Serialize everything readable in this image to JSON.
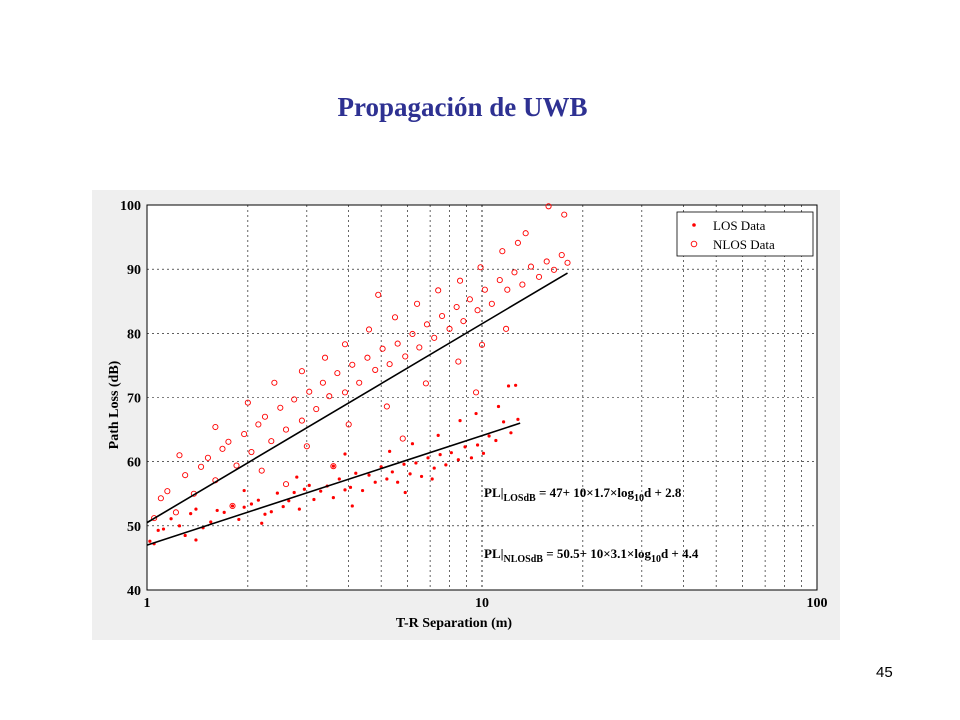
{
  "slide": {
    "title": "Propagación de UWB",
    "page_number": "45"
  },
  "chart_data": {
    "type": "scatter",
    "title": "",
    "xlabel": "T-R Separation (m)",
    "ylabel": "Path Loss (dB)",
    "x_scale": "log",
    "xlim": [
      1,
      100
    ],
    "ylim": [
      40,
      100
    ],
    "x_ticks": [
      "1",
      "10",
      "100"
    ],
    "y_ticks": [
      "40",
      "50",
      "60",
      "70",
      "80",
      "90",
      "100"
    ],
    "grid": "dashed, major and minor",
    "legend_position": "top-right",
    "series": [
      {
        "name": "LOS Data",
        "marker": "dot",
        "color": "#ff0000",
        "points": [
          [
            1.02,
            47.6
          ],
          [
            1.05,
            47.2
          ],
          [
            1.08,
            49.3
          ],
          [
            1.12,
            49.5
          ],
          [
            1.18,
            51.1
          ],
          [
            1.25,
            50.0
          ],
          [
            1.3,
            48.5
          ],
          [
            1.35,
            51.9
          ],
          [
            1.4,
            52.6
          ],
          [
            1.47,
            49.7
          ],
          [
            1.55,
            50.6
          ],
          [
            1.62,
            52.4
          ],
          [
            1.7,
            52.1
          ],
          [
            1.8,
            53.1
          ],
          [
            1.88,
            51.0
          ],
          [
            1.95,
            52.9
          ],
          [
            2.05,
            53.4
          ],
          [
            2.15,
            54.0
          ],
          [
            2.25,
            51.8
          ],
          [
            2.35,
            52.2
          ],
          [
            2.45,
            55.1
          ],
          [
            2.55,
            53.0
          ],
          [
            2.65,
            53.9
          ],
          [
            2.75,
            55.2
          ],
          [
            2.85,
            52.6
          ],
          [
            2.95,
            55.7
          ],
          [
            3.05,
            56.3
          ],
          [
            3.15,
            54.1
          ],
          [
            3.3,
            55.4
          ],
          [
            3.45,
            56.2
          ],
          [
            3.6,
            54.4
          ],
          [
            3.75,
            57.3
          ],
          [
            3.9,
            55.6
          ],
          [
            4.05,
            56.0
          ],
          [
            4.2,
            58.2
          ],
          [
            4.4,
            55.5
          ],
          [
            4.6,
            57.9
          ],
          [
            4.8,
            56.8
          ],
          [
            5.0,
            59.2
          ],
          [
            5.2,
            57.3
          ],
          [
            5.4,
            58.4
          ],
          [
            5.6,
            56.8
          ],
          [
            5.85,
            59.6
          ],
          [
            6.1,
            58.1
          ],
          [
            6.35,
            59.8
          ],
          [
            6.6,
            57.7
          ],
          [
            6.9,
            60.6
          ],
          [
            7.2,
            59.0
          ],
          [
            7.5,
            61.1
          ],
          [
            7.8,
            59.5
          ],
          [
            8.1,
            61.4
          ],
          [
            8.5,
            60.3
          ],
          [
            8.9,
            62.3
          ],
          [
            9.3,
            60.6
          ],
          [
            9.7,
            62.6
          ],
          [
            10.1,
            61.3
          ],
          [
            10.5,
            64.0
          ],
          [
            11.0,
            63.3
          ],
          [
            11.6,
            66.2
          ],
          [
            12.2,
            64.5
          ],
          [
            12.8,
            66.6
          ],
          [
            1.4,
            47.8
          ],
          [
            1.95,
            55.5
          ],
          [
            2.2,
            50.4
          ],
          [
            2.8,
            57.6
          ],
          [
            3.6,
            59.3
          ],
          [
            4.1,
            53.1
          ],
          [
            5.3,
            61.6
          ],
          [
            6.2,
            62.8
          ],
          [
            7.4,
            64.1
          ],
          [
            8.6,
            66.4
          ],
          [
            9.6,
            67.5
          ],
          [
            11.2,
            68.6
          ],
          [
            12.0,
            71.8
          ],
          [
            12.6,
            71.9
          ],
          [
            3.9,
            61.2
          ],
          [
            5.9,
            55.2
          ],
          [
            7.1,
            57.3
          ]
        ]
      },
      {
        "name": "NLOS Data",
        "marker": "open-circle",
        "color": "#ff0000",
        "points": [
          [
            1.05,
            51.2
          ],
          [
            1.1,
            54.3
          ],
          [
            1.15,
            55.4
          ],
          [
            1.22,
            52.1
          ],
          [
            1.3,
            57.9
          ],
          [
            1.38,
            55.0
          ],
          [
            1.45,
            59.2
          ],
          [
            1.52,
            60.6
          ],
          [
            1.6,
            57.1
          ],
          [
            1.68,
            62.0
          ],
          [
            1.75,
            63.1
          ],
          [
            1.85,
            59.4
          ],
          [
            1.95,
            64.3
          ],
          [
            2.05,
            61.5
          ],
          [
            2.15,
            65.8
          ],
          [
            2.25,
            67.0
          ],
          [
            2.35,
            63.2
          ],
          [
            2.5,
            68.4
          ],
          [
            2.6,
            65.0
          ],
          [
            2.75,
            69.7
          ],
          [
            2.9,
            66.4
          ],
          [
            3.05,
            70.9
          ],
          [
            3.2,
            68.2
          ],
          [
            3.35,
            72.3
          ],
          [
            3.5,
            70.2
          ],
          [
            3.7,
            73.8
          ],
          [
            3.9,
            70.8
          ],
          [
            4.1,
            75.1
          ],
          [
            4.3,
            72.3
          ],
          [
            4.55,
            76.2
          ],
          [
            4.8,
            74.3
          ],
          [
            5.05,
            77.6
          ],
          [
            5.3,
            75.2
          ],
          [
            5.6,
            78.4
          ],
          [
            5.9,
            76.4
          ],
          [
            6.2,
            79.9
          ],
          [
            6.5,
            77.8
          ],
          [
            6.85,
            81.4
          ],
          [
            7.2,
            79.3
          ],
          [
            7.6,
            82.7
          ],
          [
            8.0,
            80.7
          ],
          [
            8.4,
            84.1
          ],
          [
            8.8,
            81.9
          ],
          [
            9.2,
            85.3
          ],
          [
            9.7,
            83.6
          ],
          [
            10.2,
            86.8
          ],
          [
            10.7,
            84.6
          ],
          [
            11.3,
            88.3
          ],
          [
            11.9,
            86.8
          ],
          [
            12.5,
            89.5
          ],
          [
            13.2,
            87.6
          ],
          [
            14.0,
            90.4
          ],
          [
            14.8,
            88.8
          ],
          [
            15.6,
            91.2
          ],
          [
            16.4,
            89.9
          ],
          [
            17.3,
            92.2
          ],
          [
            18.0,
            91.0
          ],
          [
            15.8,
            99.8
          ],
          [
            17.6,
            98.5
          ],
          [
            1.25,
            61.0
          ],
          [
            1.6,
            65.4
          ],
          [
            2.0,
            69.2
          ],
          [
            2.4,
            72.3
          ],
          [
            2.9,
            74.1
          ],
          [
            3.4,
            76.2
          ],
          [
            3.9,
            78.3
          ],
          [
            4.6,
            80.6
          ],
          [
            5.5,
            82.5
          ],
          [
            6.4,
            84.6
          ],
          [
            7.4,
            86.7
          ],
          [
            8.6,
            88.2
          ],
          [
            9.9,
            90.3
          ],
          [
            11.5,
            92.8
          ],
          [
            12.8,
            94.1
          ],
          [
            13.5,
            95.6
          ],
          [
            4.9,
            86.0
          ],
          [
            2.2,
            58.6
          ],
          [
            3.0,
            62.4
          ],
          [
            4.0,
            65.8
          ],
          [
            5.2,
            68.6
          ],
          [
            6.8,
            72.2
          ],
          [
            8.5,
            75.6
          ],
          [
            10.0,
            78.2
          ],
          [
            11.8,
            80.7
          ],
          [
            1.8,
            53.1
          ],
          [
            2.6,
            56.5
          ],
          [
            3.6,
            59.3
          ],
          [
            5.8,
            63.6
          ],
          [
            9.6,
            70.8
          ]
        ]
      }
    ],
    "fit_lines": [
      {
        "name": "LOS fit",
        "x": [
          1,
          13
        ],
        "y": [
          47,
          66
        ]
      },
      {
        "name": "NLOS fit",
        "x": [
          1,
          18
        ],
        "y": [
          50.5,
          89.4
        ]
      }
    ],
    "annotations": [
      {
        "pre": "PL|",
        "sub": "LOSdB",
        "mid": " = 47+ 10×1.7×log",
        "sub2": "10",
        "post": "d + 2.8"
      },
      {
        "pre": "PL|",
        "sub": "NLOSdB",
        "mid": " = 50.5+ 10×3.1×log",
        "sub2": "10",
        "post": "d + 4.4"
      }
    ]
  }
}
